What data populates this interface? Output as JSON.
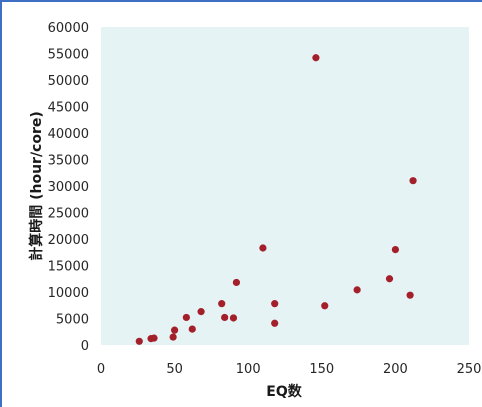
{
  "chart_data": {
    "type": "scatter",
    "title": "",
    "xlabel": "EQ数",
    "ylabel": "計算時間 (hour/core)",
    "xlim": [
      0,
      250
    ],
    "ylim": [
      0,
      60000
    ],
    "x_ticks": [
      0,
      50,
      100,
      150,
      200,
      250
    ],
    "y_ticks": [
      0,
      5000,
      10000,
      15000,
      20000,
      25000,
      30000,
      35000,
      40000,
      45000,
      50000,
      55000,
      60000
    ],
    "grid": false,
    "legend": "none",
    "colors": {
      "plot_background": "#e6f3f5",
      "marker": "#a3202a",
      "frame": "#3f6fc4"
    },
    "series": [
      {
        "points": [
          {
            "x": 26,
            "y": 700
          },
          {
            "x": 34,
            "y": 1200
          },
          {
            "x": 36,
            "y": 1300
          },
          {
            "x": 49,
            "y": 1500
          },
          {
            "x": 50,
            "y": 2800
          },
          {
            "x": 58,
            "y": 5200
          },
          {
            "x": 62,
            "y": 3000
          },
          {
            "x": 68,
            "y": 6300
          },
          {
            "x": 82,
            "y": 7800
          },
          {
            "x": 84,
            "y": 5200
          },
          {
            "x": 90,
            "y": 5100
          },
          {
            "x": 92,
            "y": 11800
          },
          {
            "x": 110,
            "y": 18300
          },
          {
            "x": 118,
            "y": 7800
          },
          {
            "x": 118,
            "y": 4100
          },
          {
            "x": 146,
            "y": 54200
          },
          {
            "x": 152,
            "y": 7400
          },
          {
            "x": 174,
            "y": 10400
          },
          {
            "x": 196,
            "y": 12500
          },
          {
            "x": 200,
            "y": 18000
          },
          {
            "x": 210,
            "y": 9400
          },
          {
            "x": 212,
            "y": 31000
          }
        ]
      }
    ]
  }
}
